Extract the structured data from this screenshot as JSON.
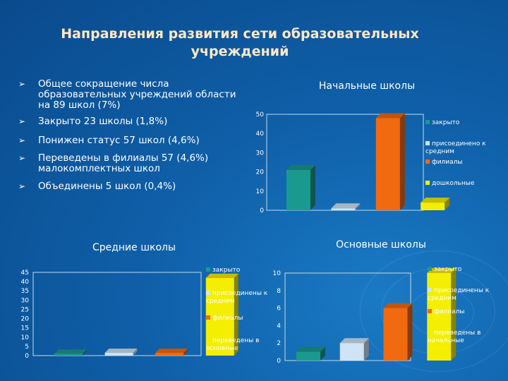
{
  "slide": {
    "title_line1": "Направления развития сети образовательных",
    "title_line2": "учреждений"
  },
  "bullets": [
    "Общее сокращение числа образовательных учреждений области на 89 школ (7%)",
    "Закрыто 23 школы (1,8%)",
    "Понижен статус 57 школ (4,6%)",
    "Переведены в филиалы 57 (4,6%) малокомплектных школ",
    "Объединены 5 школ (0,4%)"
  ],
  "chart_data": [
    {
      "type": "bar",
      "title": "Начальные школы",
      "categories": [
        "закрыто",
        "присоединено к средним",
        "филиалы",
        "дошкольные"
      ],
      "values": [
        21,
        1,
        48,
        4
      ],
      "colors": [
        "#1a9a8e",
        "#cfe4f6",
        "#f26a10",
        "#f4ee00"
      ],
      "yticks": [
        "0",
        "10",
        "20",
        "30",
        "40",
        "50"
      ],
      "ylim": [
        0,
        50
      ],
      "grid": false,
      "legend_position": "right"
    },
    {
      "type": "bar",
      "title": "Средние школы",
      "categories": [
        "закрыто",
        "присоединены к средним",
        "филиалы",
        "переведены в основные"
      ],
      "values": [
        1,
        1.5,
        1.5,
        42
      ],
      "colors": [
        "#1a9a8e",
        "#cfe4f6",
        "#f26a10",
        "#f4ee00"
      ],
      "yticks": [
        "0",
        "5",
        "10",
        "15",
        "20",
        "25",
        "30",
        "35",
        "40",
        "45"
      ],
      "ylim": [
        0,
        45
      ],
      "grid": false,
      "legend_position": "right"
    },
    {
      "type": "bar",
      "title": "Основные школы",
      "categories": [
        "закрыто",
        "присоединены к средним",
        "филиалы",
        "переведены в начальные"
      ],
      "values": [
        1,
        2,
        6,
        10
      ],
      "colors": [
        "#1a9a8e",
        "#cfe4f6",
        "#f26a10",
        "#f4ee00"
      ],
      "yticks": [
        "0",
        "2",
        "4",
        "6",
        "8",
        "10"
      ],
      "ylim": [
        0,
        10
      ],
      "grid": false,
      "legend_position": "right"
    }
  ]
}
